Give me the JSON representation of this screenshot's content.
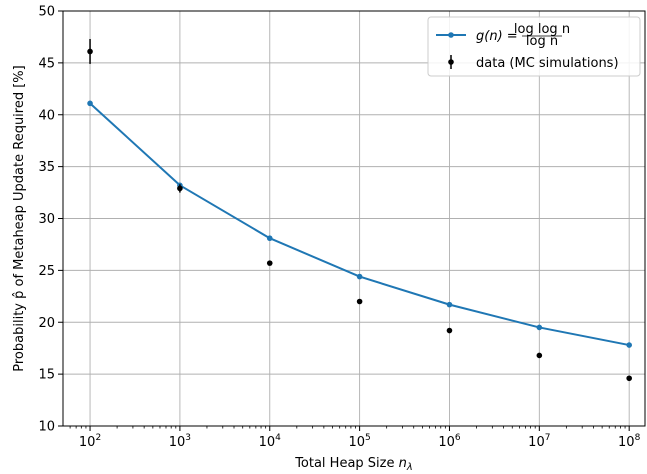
{
  "chart_data": {
    "type": "line",
    "xscale": "log",
    "xlim": [
      50,
      150000000
    ],
    "ylim": [
      10,
      50
    ],
    "grid": true,
    "legend_position": "top-right",
    "xlabel": "Total Heap Size n_λ",
    "xlabel_parts": {
      "main": "Total Heap Size ",
      "var": "n",
      "sub": "λ"
    },
    "ylabel": "Probability p̂ of Metaheap Update Required [%]",
    "x_ticks": [
      100,
      1000,
      10000,
      100000,
      1000000,
      10000000,
      100000000
    ],
    "x_tick_labels": [
      {
        "base": "10",
        "exp": "2"
      },
      {
        "base": "10",
        "exp": "3"
      },
      {
        "base": "10",
        "exp": "4"
      },
      {
        "base": "10",
        "exp": "5"
      },
      {
        "base": "10",
        "exp": "6"
      },
      {
        "base": "10",
        "exp": "7"
      },
      {
        "base": "10",
        "exp": "8"
      }
    ],
    "y_ticks": [
      10,
      15,
      20,
      25,
      30,
      35,
      40,
      45,
      50
    ],
    "series": [
      {
        "name": "g(n) = log log n / log n",
        "legend_parts": {
          "prefix": "g(n) =",
          "numerator": "log log n",
          "denominator": "log n"
        },
        "kind": "line-marker",
        "color": "#1f77b4",
        "x": [
          100,
          1000,
          10000,
          100000,
          1000000,
          10000000,
          100000000
        ],
        "y": [
          41.1,
          33.2,
          28.1,
          24.4,
          21.7,
          19.5,
          17.8
        ]
      },
      {
        "name": "data (MC simulations)",
        "kind": "errorbar",
        "color": "#000000",
        "x": [
          100,
          1000,
          10000,
          100000,
          1000000,
          10000000,
          100000000
        ],
        "y": [
          46.1,
          32.9,
          25.7,
          22.0,
          19.2,
          16.8,
          14.6
        ],
        "yerr": [
          1.2,
          0.4,
          0.2,
          0.15,
          0.15,
          0.15,
          0.2
        ]
      }
    ]
  }
}
